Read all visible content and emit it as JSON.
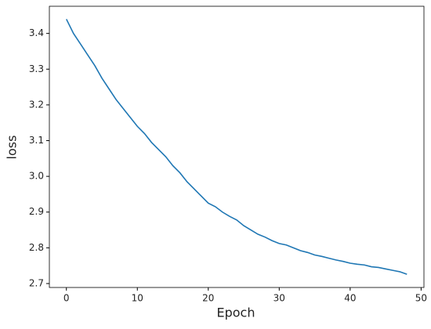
{
  "chart_data": {
    "type": "line",
    "xlabel": "Epoch",
    "ylabel": "loss",
    "x": [
      0,
      1,
      2,
      3,
      4,
      5,
      6,
      7,
      8,
      9,
      10,
      11,
      12,
      13,
      14,
      15,
      16,
      17,
      18,
      19,
      20,
      21,
      22,
      23,
      24,
      25,
      26,
      27,
      28,
      29,
      30,
      31,
      32,
      33,
      34,
      35,
      36,
      37,
      38,
      39,
      40,
      41,
      42,
      43,
      44,
      45,
      46,
      47,
      48
    ],
    "series": [
      {
        "color": "#1f77b4",
        "values": [
          3.44,
          3.4,
          3.37,
          3.34,
          3.31,
          3.275,
          3.245,
          3.215,
          3.19,
          3.165,
          3.14,
          3.12,
          3.095,
          3.075,
          3.055,
          3.03,
          3.01,
          2.985,
          2.965,
          2.945,
          2.925,
          2.915,
          2.9,
          2.888,
          2.878,
          2.862,
          2.85,
          2.838,
          2.83,
          2.82,
          2.812,
          2.808,
          2.8,
          2.792,
          2.787,
          2.78,
          2.776,
          2.771,
          2.766,
          2.762,
          2.757,
          2.754,
          2.752,
          2.747,
          2.745,
          2.741,
          2.737,
          2.733,
          2.726
        ]
      }
    ],
    "xlim": [
      -2.4,
      50.4
    ],
    "xticks": [
      0,
      10,
      20,
      30,
      40,
      50
    ],
    "ylim": [
      2.689,
      3.476
    ],
    "yticks": [
      2.7,
      2.8,
      2.9,
      {
        "value": 3,
        "label": "3.0"
      },
      3.1,
      3.2,
      3.3,
      3.4
    ]
  }
}
